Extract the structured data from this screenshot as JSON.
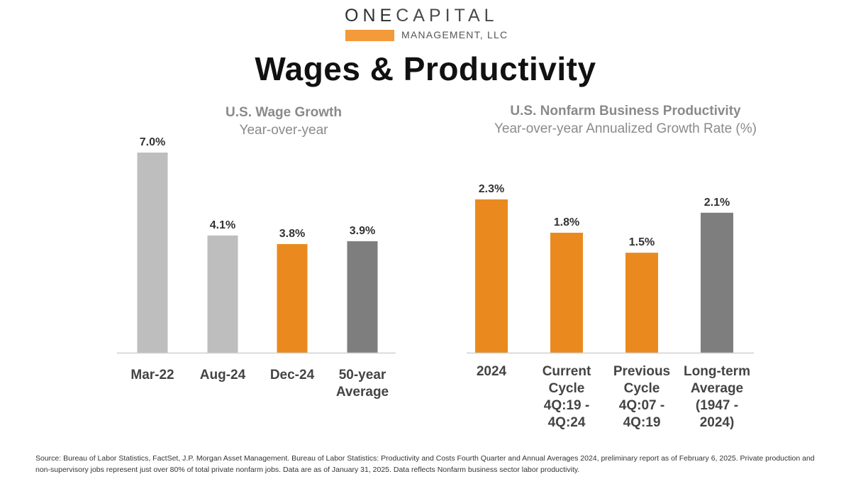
{
  "logo": {
    "line1_strong": "ONE",
    "line1_rest": "CAPITAL",
    "line2": "MANAGEMENT, LLC"
  },
  "title": "Wages & Productivity",
  "colors": {
    "orange": "#ea8a1e",
    "light_gray": "#bebebe",
    "dark_gray": "#7e7e7e",
    "label": "#444444",
    "value_label": "#333333"
  },
  "chart_data": [
    {
      "type": "bar",
      "title": "U.S. Wage Growth",
      "subtitle": "Year-over-year",
      "categories": [
        [
          "Mar-22"
        ],
        [
          "Aug-24"
        ],
        [
          "Dec-24"
        ],
        [
          "50-year",
          "Average"
        ]
      ],
      "values": [
        7.0,
        4.1,
        3.8,
        3.9
      ],
      "value_labels": [
        "7.0%",
        "4.1%",
        "3.8%",
        "3.9%"
      ],
      "bar_colors": [
        "light_gray",
        "light_gray",
        "orange",
        "dark_gray"
      ],
      "ylim": [
        0,
        7.0
      ],
      "xlabel": "",
      "ylabel": "",
      "grid": false
    },
    {
      "type": "bar",
      "title": "U.S. Nonfarm Business Productivity",
      "subtitle": "Year-over-year Annualized Growth Rate (%)",
      "categories": [
        [
          "2024"
        ],
        [
          "Current",
          "Cycle",
          "4Q:19 -",
          "4Q:24"
        ],
        [
          "Previous",
          "Cycle",
          "4Q:07 -",
          "4Q:19"
        ],
        [
          "Long-term",
          "Average",
          "(1947 -",
          "2024)"
        ]
      ],
      "values": [
        2.3,
        1.8,
        1.5,
        2.1
      ],
      "value_labels": [
        "2.3%",
        "1.8%",
        "1.5%",
        "2.1%"
      ],
      "bar_colors": [
        "orange",
        "orange",
        "orange",
        "dark_gray"
      ],
      "ylim": [
        0,
        2.3
      ],
      "xlabel": "",
      "ylabel": "",
      "grid": false
    }
  ],
  "footnote": "Source: Bureau of Labor Statistics, FactSet, J.P. Morgan Asset Management.  Bureau of Labor Statistics: Productivity and Costs Fourth Quarter and Annual Averages 2024, preliminary report as of February 6, 2025. Private production and non-supervisory jobs represent just over 80% of total private nonfarm jobs. Data are as of January  31, 2025. Data reflects Nonfarm business sector labor productivity."
}
